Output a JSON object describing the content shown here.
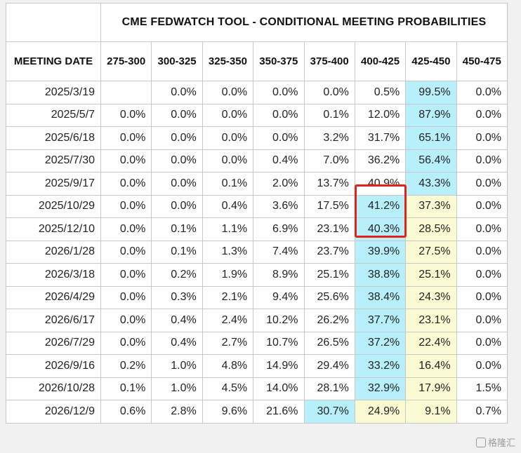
{
  "title": "CME FEDWATCH TOOL - CONDITIONAL MEETING PROBABILITIES",
  "header": {
    "meeting_date": "MEETING DATE",
    "ranges": [
      "275-300",
      "300-325",
      "325-350",
      "350-375",
      "375-400",
      "400-425",
      "425-450",
      "450-475"
    ]
  },
  "rows": [
    {
      "date": "2025/3/19",
      "values": [
        "",
        "0.0%",
        "0.0%",
        "0.0%",
        "0.0%",
        "0.5%",
        "99.5%",
        "0.0%"
      ],
      "hl": [
        "",
        "",
        "",
        "",
        "",
        "",
        "blue",
        ""
      ]
    },
    {
      "date": "2025/5/7",
      "values": [
        "0.0%",
        "0.0%",
        "0.0%",
        "0.0%",
        "0.1%",
        "12.0%",
        "87.9%",
        "0.0%"
      ],
      "hl": [
        "",
        "",
        "",
        "",
        "",
        "",
        "blue",
        ""
      ]
    },
    {
      "date": "2025/6/18",
      "values": [
        "0.0%",
        "0.0%",
        "0.0%",
        "0.0%",
        "3.2%",
        "31.7%",
        "65.1%",
        "0.0%"
      ],
      "hl": [
        "",
        "",
        "",
        "",
        "",
        "",
        "blue",
        ""
      ]
    },
    {
      "date": "2025/7/30",
      "values": [
        "0.0%",
        "0.0%",
        "0.0%",
        "0.4%",
        "7.0%",
        "36.2%",
        "56.4%",
        "0.0%"
      ],
      "hl": [
        "",
        "",
        "",
        "",
        "",
        "",
        "blue",
        ""
      ]
    },
    {
      "date": "2025/9/17",
      "values": [
        "0.0%",
        "0.0%",
        "0.1%",
        "2.0%",
        "13.7%",
        "40.9%",
        "43.3%",
        "0.0%"
      ],
      "hl": [
        "",
        "",
        "",
        "",
        "",
        "",
        "blue",
        ""
      ]
    },
    {
      "date": "2025/10/29",
      "values": [
        "0.0%",
        "0.0%",
        "0.4%",
        "3.6%",
        "17.5%",
        "41.2%",
        "37.3%",
        "0.0%"
      ],
      "hl": [
        "",
        "",
        "",
        "",
        "",
        "blue",
        "yellow",
        ""
      ]
    },
    {
      "date": "2025/12/10",
      "values": [
        "0.0%",
        "0.1%",
        "1.1%",
        "6.9%",
        "23.1%",
        "40.3%",
        "28.5%",
        "0.0%"
      ],
      "hl": [
        "",
        "",
        "",
        "",
        "",
        "blue",
        "yellow",
        ""
      ]
    },
    {
      "date": "2026/1/28",
      "values": [
        "0.0%",
        "0.1%",
        "1.3%",
        "7.4%",
        "23.7%",
        "39.9%",
        "27.5%",
        "0.0%"
      ],
      "hl": [
        "",
        "",
        "",
        "",
        "",
        "blue",
        "yellow",
        ""
      ]
    },
    {
      "date": "2026/3/18",
      "values": [
        "0.0%",
        "0.2%",
        "1.9%",
        "8.9%",
        "25.1%",
        "38.8%",
        "25.1%",
        "0.0%"
      ],
      "hl": [
        "",
        "",
        "",
        "",
        "",
        "blue",
        "yellow",
        ""
      ]
    },
    {
      "date": "2026/4/29",
      "values": [
        "0.0%",
        "0.3%",
        "2.1%",
        "9.4%",
        "25.6%",
        "38.4%",
        "24.3%",
        "0.0%"
      ],
      "hl": [
        "",
        "",
        "",
        "",
        "",
        "blue",
        "yellow",
        ""
      ]
    },
    {
      "date": "2026/6/17",
      "values": [
        "0.0%",
        "0.4%",
        "2.4%",
        "10.2%",
        "26.2%",
        "37.7%",
        "23.1%",
        "0.0%"
      ],
      "hl": [
        "",
        "",
        "",
        "",
        "",
        "blue",
        "yellow",
        ""
      ]
    },
    {
      "date": "2026/7/29",
      "values": [
        "0.0%",
        "0.4%",
        "2.7%",
        "10.7%",
        "26.5%",
        "37.2%",
        "22.4%",
        "0.0%"
      ],
      "hl": [
        "",
        "",
        "",
        "",
        "",
        "blue",
        "yellow",
        ""
      ]
    },
    {
      "date": "2026/9/16",
      "values": [
        "0.2%",
        "1.0%",
        "4.8%",
        "14.9%",
        "29.4%",
        "33.2%",
        "16.4%",
        "0.0%"
      ],
      "hl": [
        "",
        "",
        "",
        "",
        "",
        "blue",
        "yellow",
        ""
      ]
    },
    {
      "date": "2026/10/28",
      "values": [
        "0.1%",
        "1.0%",
        "4.5%",
        "14.0%",
        "28.1%",
        "32.9%",
        "17.9%",
        "1.5%"
      ],
      "hl": [
        "",
        "",
        "",
        "",
        "",
        "blue",
        "yellow",
        ""
      ]
    },
    {
      "date": "2026/12/9",
      "values": [
        "0.6%",
        "2.8%",
        "9.6%",
        "21.6%",
        "30.7%",
        "24.9%",
        "9.1%",
        "0.7%"
      ],
      "hl": [
        "",
        "",
        "",
        "",
        "blue",
        "yellow",
        "yellow",
        ""
      ]
    }
  ],
  "colors": {
    "blue": "#b7f0fb",
    "yellow": "#fbfbd3",
    "highlight_border": "#e0241a"
  },
  "watermark": {
    "text": "格隆汇"
  }
}
